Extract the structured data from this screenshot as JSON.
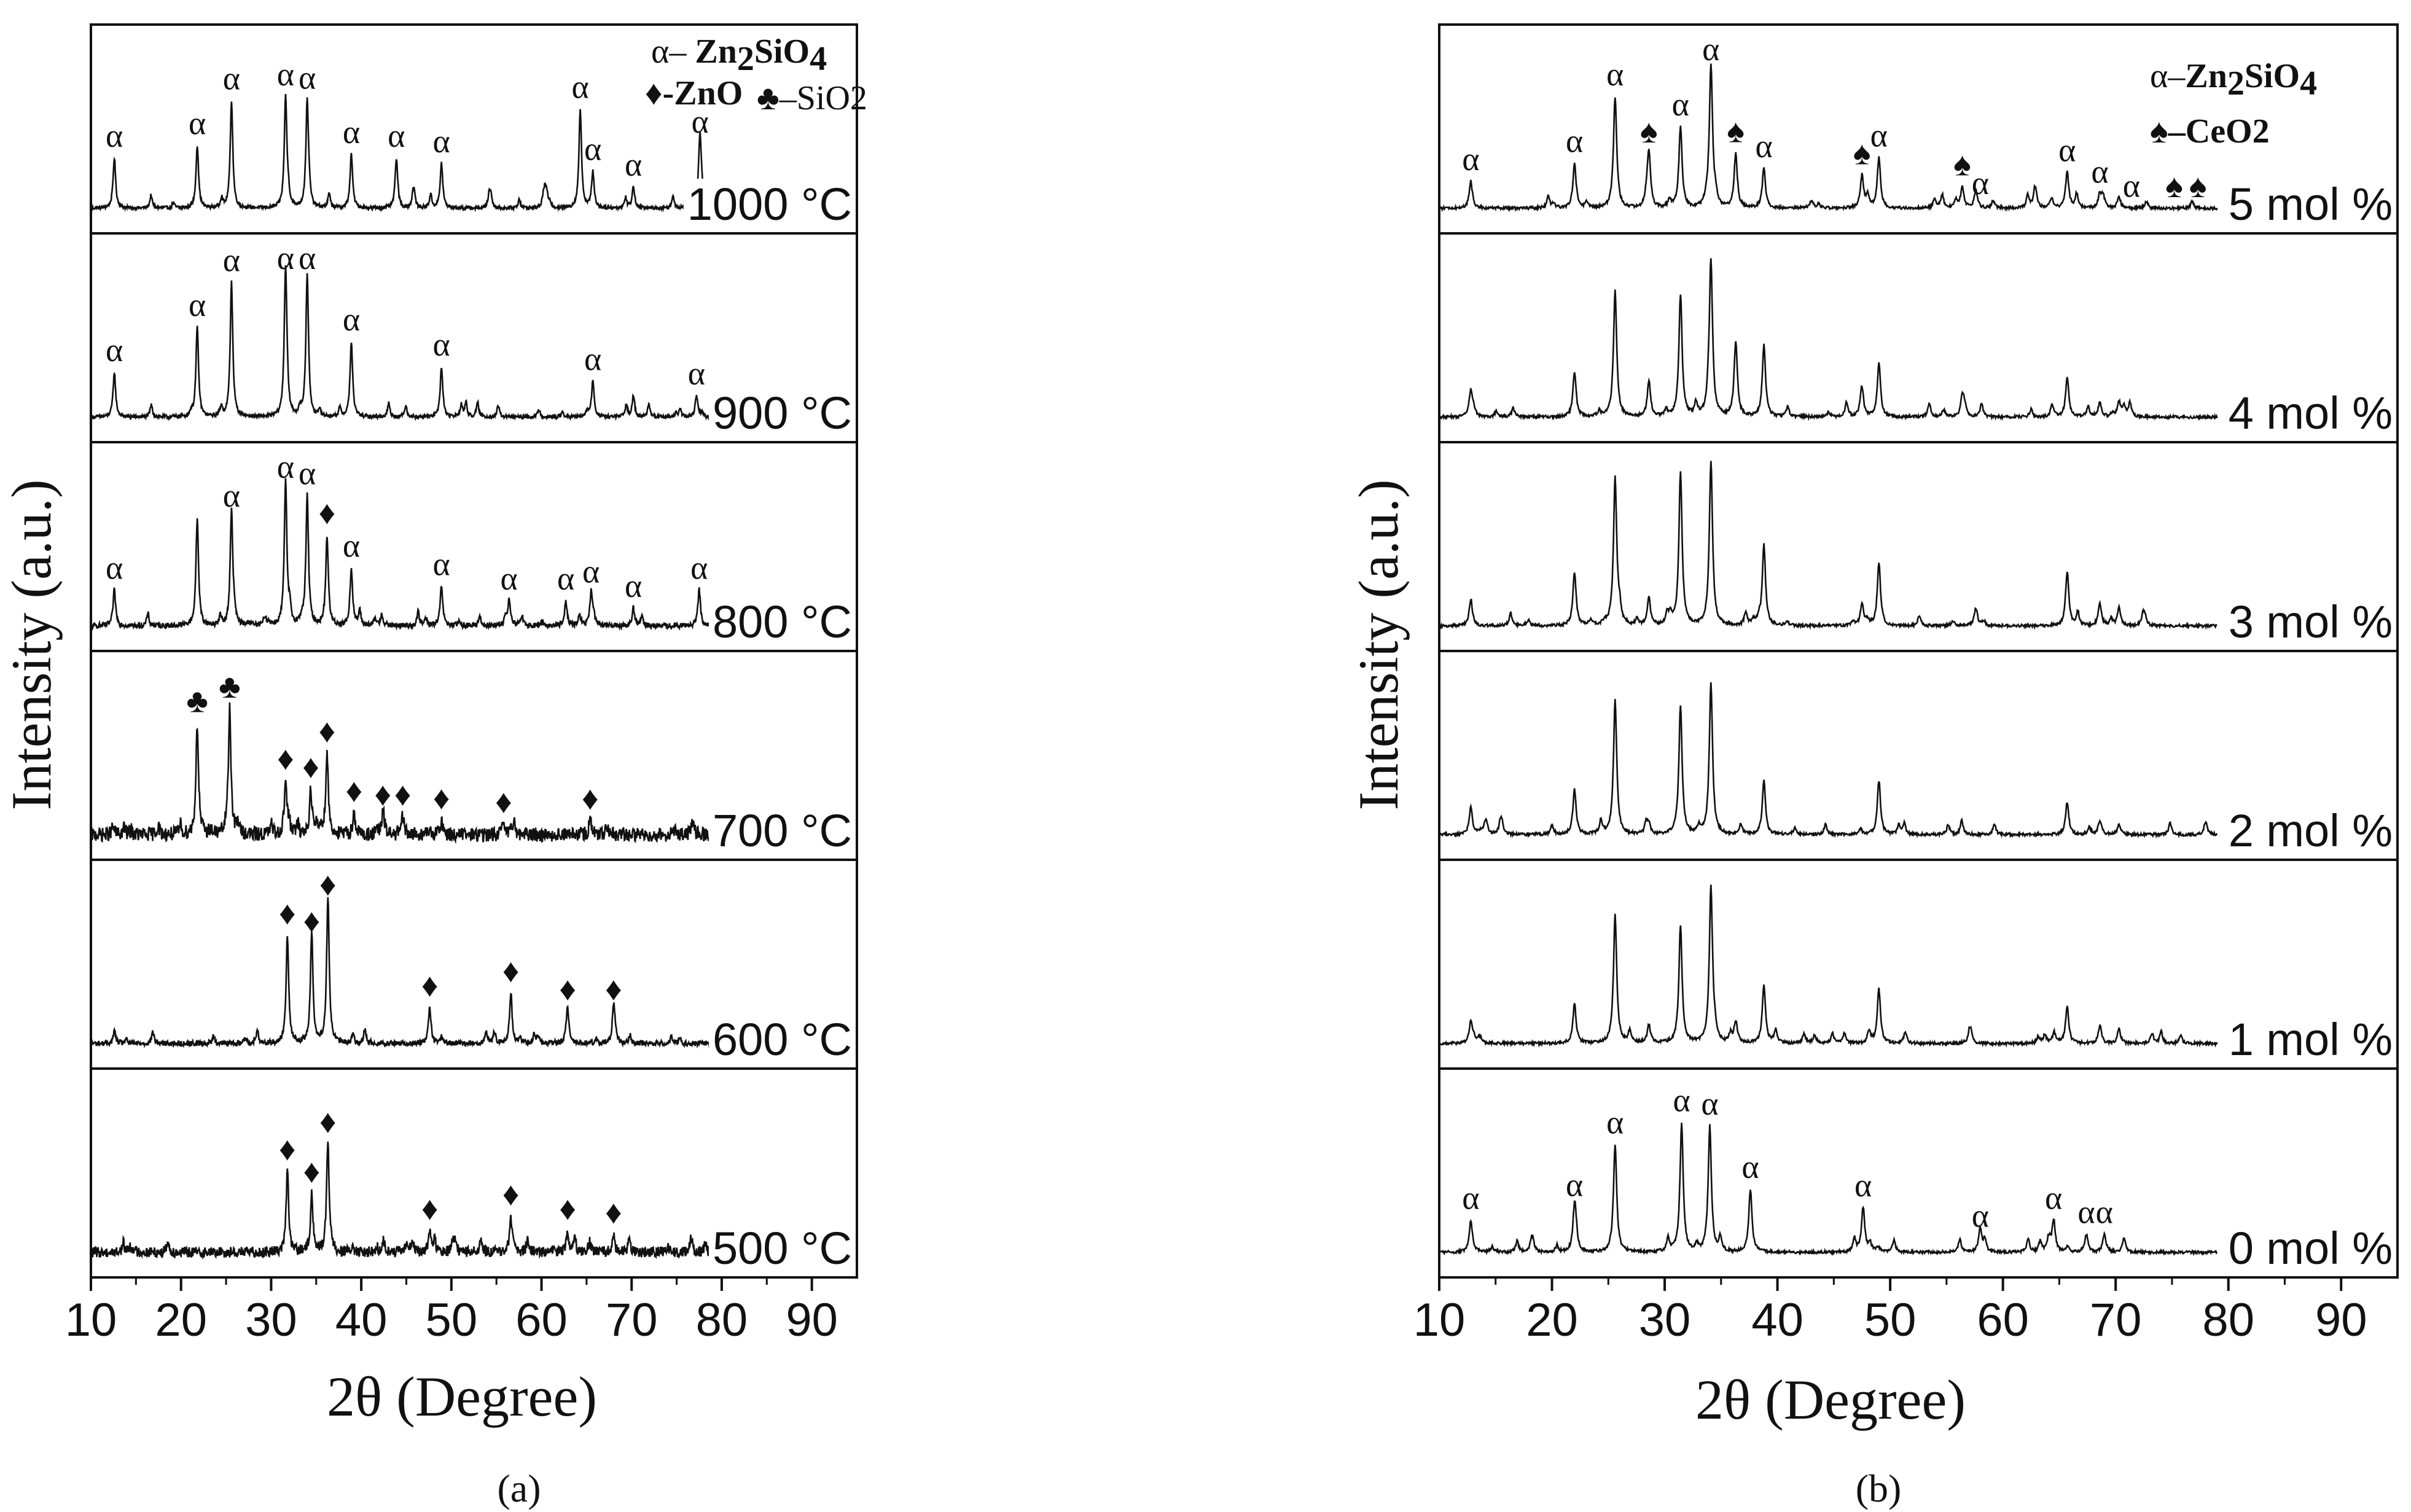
{
  "chart_data": [
    {
      "panel_id": "a",
      "type": "line",
      "caption": "(a)",
      "xlabel": "2θ (Degree)",
      "ylabel": "Intensity (a.u.)",
      "xlim": [
        10,
        95
      ],
      "x_ticks": [
        "10",
        "20",
        "30",
        "40",
        "50",
        "60",
        "70",
        "80",
        "90"
      ],
      "legend": {
        "alpha": "α– ",
        "alpha_formula": "Zn2SiO4",
        "zno": "♦-ZnO",
        "sio2": "♣–SiO2"
      },
      "series": [
        {
          "name": "1000 °C",
          "label": "1000 °C",
          "peaks": [
            [
              12.6,
              0.28
            ],
            [
              21.8,
              0.35
            ],
            [
              25.6,
              0.6
            ],
            [
              31.6,
              0.62
            ],
            [
              34.0,
              0.6
            ],
            [
              38.9,
              0.3
            ],
            [
              43.9,
              0.28
            ],
            [
              48.9,
              0.25
            ],
            [
              64.3,
              0.55
            ],
            [
              65.7,
              0.2
            ],
            [
              70.2,
              0.12
            ],
            [
              77.6,
              0.36
            ]
          ],
          "markers": [
            {
              "x": 12.6,
              "symbol": "α"
            },
            {
              "x": 21.8,
              "symbol": "α"
            },
            {
              "x": 25.6,
              "symbol": "α"
            },
            {
              "x": 31.6,
              "symbol": "α"
            },
            {
              "x": 34.0,
              "symbol": "α"
            },
            {
              "x": 38.9,
              "symbol": "α"
            },
            {
              "x": 43.9,
              "symbol": "α"
            },
            {
              "x": 48.9,
              "symbol": "α"
            },
            {
              "x": 64.3,
              "symbol": "α"
            },
            {
              "x": 65.7,
              "symbol": "α"
            },
            {
              "x": 70.2,
              "symbol": "α"
            },
            {
              "x": 77.6,
              "symbol": "α"
            }
          ]
        },
        {
          "name": "900 °C",
          "label": "900 °C",
          "peaks": [
            [
              12.6,
              0.25
            ],
            [
              21.8,
              0.5
            ],
            [
              25.6,
              0.75
            ],
            [
              31.6,
              0.8
            ],
            [
              34.0,
              0.8
            ],
            [
              38.9,
              0.42
            ],
            [
              48.9,
              0.28
            ],
            [
              65.7,
              0.2
            ],
            [
              70.2,
              0.12
            ],
            [
              77.2,
              0.12
            ]
          ],
          "markers": [
            {
              "x": 12.6,
              "symbol": "α"
            },
            {
              "x": 21.8,
              "symbol": "α"
            },
            {
              "x": 25.6,
              "symbol": "α"
            },
            {
              "x": 31.6,
              "symbol": "α"
            },
            {
              "x": 34.0,
              "symbol": "α"
            },
            {
              "x": 38.9,
              "symbol": "α"
            },
            {
              "x": 48.9,
              "symbol": "α"
            },
            {
              "x": 65.7,
              "symbol": "α"
            },
            {
              "x": 77.2,
              "symbol": "α"
            }
          ]
        },
        {
          "name": "800 °C",
          "label": "800 °C",
          "peaks": [
            [
              12.6,
              0.2
            ],
            [
              21.8,
              0.6
            ],
            [
              25.6,
              0.6
            ],
            [
              31.6,
              0.8
            ],
            [
              34.0,
              0.72
            ],
            [
              36.2,
              0.5
            ],
            [
              38.9,
              0.32
            ],
            [
              48.9,
              0.22
            ],
            [
              56.4,
              0.14
            ],
            [
              62.7,
              0.14
            ],
            [
              65.5,
              0.18
            ],
            [
              70.2,
              0.1
            ],
            [
              77.5,
              0.2
            ]
          ],
          "markers": [
            {
              "x": 12.6,
              "symbol": "α"
            },
            {
              "x": 25.6,
              "symbol": "α"
            },
            {
              "x": 31.6,
              "symbol": "α"
            },
            {
              "x": 34.0,
              "symbol": "α"
            },
            {
              "x": 36.2,
              "symbol": "♦"
            },
            {
              "x": 38.9,
              "symbol": "α"
            },
            {
              "x": 48.9,
              "symbol": "α"
            },
            {
              "x": 56.4,
              "symbol": "α"
            },
            {
              "x": 62.7,
              "symbol": "α"
            },
            {
              "x": 65.5,
              "symbol": "α"
            },
            {
              "x": 70.2,
              "symbol": "α"
            },
            {
              "x": 77.5,
              "symbol": "α"
            }
          ]
        },
        {
          "name": "700 °C",
          "label": "700 °C",
          "peaks": [
            [
              21.8,
              0.62
            ],
            [
              25.4,
              0.7
            ],
            [
              31.6,
              0.3
            ],
            [
              34.4,
              0.25
            ],
            [
              36.2,
              0.45
            ],
            [
              39.2,
              0.12
            ],
            [
              42.4,
              0.1
            ],
            [
              44.6,
              0.1
            ],
            [
              48.9,
              0.08
            ],
            [
              55.8,
              0.06
            ],
            [
              65.4,
              0.08
            ]
          ],
          "markers": [
            {
              "x": 21.8,
              "symbol": "♣"
            },
            {
              "x": 25.4,
              "symbol": "♣"
            },
            {
              "x": 31.6,
              "symbol": "♦"
            },
            {
              "x": 34.4,
              "symbol": "♦"
            },
            {
              "x": 36.2,
              "symbol": "♦"
            },
            {
              "x": 39.2,
              "symbol": "♦"
            },
            {
              "x": 42.4,
              "symbol": "♦"
            },
            {
              "x": 44.6,
              "symbol": "♦"
            },
            {
              "x": 48.9,
              "symbol": "♦"
            },
            {
              "x": 55.8,
              "symbol": "♦"
            },
            {
              "x": 65.4,
              "symbol": "♦"
            }
          ]
        },
        {
          "name": "600 °C",
          "label": "600 °C",
          "peaks": [
            [
              31.8,
              0.6
            ],
            [
              34.5,
              0.55
            ],
            [
              36.3,
              0.82
            ],
            [
              47.6,
              0.2
            ],
            [
              56.6,
              0.28
            ],
            [
              62.9,
              0.18
            ],
            [
              68.0,
              0.18
            ]
          ],
          "markers": [
            {
              "x": 31.8,
              "symbol": "♦"
            },
            {
              "x": 34.5,
              "symbol": "♦"
            },
            {
              "x": 36.3,
              "symbol": "♦"
            },
            {
              "x": 47.6,
              "symbol": "♦"
            },
            {
              "x": 56.6,
              "symbol": "♦"
            },
            {
              "x": 62.9,
              "symbol": "♦"
            },
            {
              "x": 68.0,
              "symbol": "♦"
            }
          ]
        },
        {
          "name": "500 °C",
          "label": "500 °C",
          "peaks": [
            [
              31.8,
              0.45
            ],
            [
              34.5,
              0.32
            ],
            [
              36.3,
              0.6
            ],
            [
              47.6,
              0.12
            ],
            [
              56.6,
              0.2
            ],
            [
              62.9,
              0.12
            ],
            [
              68.0,
              0.1
            ]
          ],
          "markers": [
            {
              "x": 31.8,
              "symbol": "♦"
            },
            {
              "x": 34.5,
              "symbol": "♦"
            },
            {
              "x": 36.3,
              "symbol": "♦"
            },
            {
              "x": 47.6,
              "symbol": "♦"
            },
            {
              "x": 56.6,
              "symbol": "♦"
            },
            {
              "x": 62.9,
              "symbol": "♦"
            },
            {
              "x": 68.0,
              "symbol": "♦"
            }
          ]
        }
      ]
    },
    {
      "panel_id": "b",
      "type": "line",
      "caption": "(b)",
      "xlabel": "2θ (Degree)",
      "ylabel": "Intensity (a.u.)",
      "xlim": [
        10,
        95
      ],
      "x_ticks": [
        "10",
        "20",
        "30",
        "40",
        "50",
        "60",
        "70",
        "80",
        "90"
      ],
      "legend": {
        "alpha": "α–",
        "alpha_formula": "Zn2SiO4",
        "ceo2": "♠–CeO2"
      },
      "series": [
        {
          "name": "5 mol %",
          "label": "5 mol %",
          "peaks": [
            [
              12.8,
              0.15
            ],
            [
              22.0,
              0.25
            ],
            [
              25.6,
              0.62
            ],
            [
              28.6,
              0.3
            ],
            [
              31.4,
              0.45
            ],
            [
              34.1,
              0.8
            ],
            [
              36.3,
              0.3
            ],
            [
              38.8,
              0.22
            ],
            [
              47.5,
              0.18
            ],
            [
              49.0,
              0.28
            ],
            [
              56.4,
              0.12
            ],
            [
              57.6,
              0.1
            ],
            [
              65.7,
              0.2
            ],
            [
              68.6,
              0.08
            ],
            [
              70.3,
              0.06
            ]
          ],
          "markers": [
            {
              "x": 12.8,
              "symbol": "α"
            },
            {
              "x": 22.0,
              "symbol": "α"
            },
            {
              "x": 25.6,
              "symbol": "α"
            },
            {
              "x": 28.6,
              "symbol": "♠"
            },
            {
              "x": 31.4,
              "symbol": "α"
            },
            {
              "x": 34.1,
              "symbol": "α"
            },
            {
              "x": 36.3,
              "symbol": "♠"
            },
            {
              "x": 38.8,
              "symbol": "α"
            },
            {
              "x": 47.5,
              "symbol": "♠"
            },
            {
              "x": 49.0,
              "symbol": "α"
            },
            {
              "x": 56.4,
              "symbol": "♠"
            },
            {
              "x": 58.0,
              "symbol": "α"
            },
            {
              "x": 65.7,
              "symbol": "α"
            },
            {
              "x": 68.6,
              "symbol": "α"
            },
            {
              "x": 71.4,
              "symbol": "α"
            },
            {
              "x": 75.2,
              "symbol": "♠"
            },
            {
              "x": 77.3,
              "symbol": "♠"
            }
          ]
        },
        {
          "name": "4 mol %",
          "label": "4 mol %",
          "peaks": [
            [
              12.8,
              0.15
            ],
            [
              22.0,
              0.25
            ],
            [
              25.6,
              0.7
            ],
            [
              28.6,
              0.2
            ],
            [
              31.4,
              0.68
            ],
            [
              34.1,
              0.82
            ],
            [
              36.3,
              0.42
            ],
            [
              38.8,
              0.4
            ],
            [
              47.5,
              0.15
            ],
            [
              49.0,
              0.3
            ],
            [
              56.4,
              0.12
            ],
            [
              65.7,
              0.22
            ],
            [
              68.6,
              0.08
            ],
            [
              70.3,
              0.08
            ]
          ],
          "markers": []
        },
        {
          "name": "3 mol %",
          "label": "3 mol %",
          "peaks": [
            [
              12.8,
              0.15
            ],
            [
              22.0,
              0.3
            ],
            [
              25.6,
              0.82
            ],
            [
              28.6,
              0.15
            ],
            [
              31.4,
              0.85
            ],
            [
              34.1,
              0.92
            ],
            [
              38.8,
              0.45
            ],
            [
              47.5,
              0.12
            ],
            [
              49.0,
              0.35
            ],
            [
              57.6,
              0.1
            ],
            [
              65.7,
              0.3
            ],
            [
              68.6,
              0.12
            ],
            [
              70.3,
              0.1
            ]
          ],
          "markers": []
        },
        {
          "name": "2 mol %",
          "label": "2 mol %",
          "peaks": [
            [
              12.8,
              0.15
            ],
            [
              22.0,
              0.25
            ],
            [
              25.6,
              0.75
            ],
            [
              28.6,
              0.05
            ],
            [
              31.4,
              0.72
            ],
            [
              34.1,
              0.85
            ],
            [
              38.8,
              0.3
            ],
            [
              49.0,
              0.3
            ],
            [
              65.7,
              0.18
            ],
            [
              68.6,
              0.08
            ],
            [
              70.3,
              0.06
            ]
          ],
          "markers": []
        },
        {
          "name": "1 mol %",
          "label": "1 mol %",
          "peaks": [
            [
              12.8,
              0.12
            ],
            [
              22.0,
              0.22
            ],
            [
              25.6,
              0.72
            ],
            [
              28.6,
              0.1
            ],
            [
              31.4,
              0.65
            ],
            [
              34.1,
              0.88
            ],
            [
              36.3,
              0.12
            ],
            [
              38.8,
              0.32
            ],
            [
              49.0,
              0.3
            ],
            [
              65.7,
              0.2
            ],
            [
              68.6,
              0.1
            ],
            [
              70.3,
              0.08
            ]
          ],
          "markers": []
        },
        {
          "name": "0 mol %",
          "label": "0 mol %",
          "peaks": [
            [
              12.8,
              0.18
            ],
            [
              22.0,
              0.25
            ],
            [
              25.6,
              0.6
            ],
            [
              31.5,
              0.72
            ],
            [
              34.0,
              0.7
            ],
            [
              37.6,
              0.35
            ],
            [
              47.6,
              0.25
            ],
            [
              58.0,
              0.08
            ],
            [
              64.5,
              0.18
            ],
            [
              67.4,
              0.1
            ],
            [
              69.0,
              0.1
            ]
          ],
          "markers": [
            {
              "x": 12.8,
              "symbol": "α"
            },
            {
              "x": 22.0,
              "symbol": "α"
            },
            {
              "x": 25.6,
              "symbol": "α"
            },
            {
              "x": 31.5,
              "symbol": "α"
            },
            {
              "x": 34.0,
              "symbol": "α"
            },
            {
              "x": 37.6,
              "symbol": "α"
            },
            {
              "x": 47.6,
              "symbol": "α"
            },
            {
              "x": 58.0,
              "symbol": "α"
            },
            {
              "x": 64.5,
              "symbol": "α"
            },
            {
              "x": 67.4,
              "symbol": "α"
            },
            {
              "x": 69.0,
              "symbol": "α"
            }
          ]
        }
      ]
    }
  ]
}
